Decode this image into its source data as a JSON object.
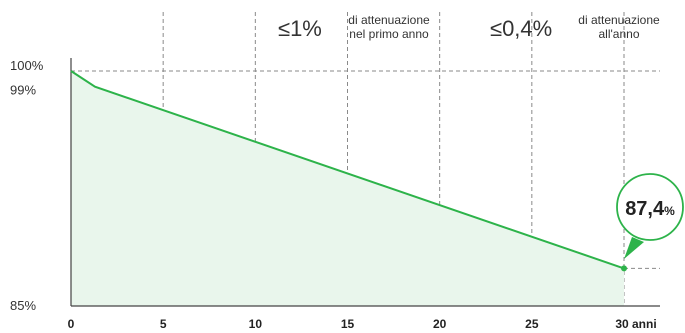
{
  "chart_data": {
    "type": "line",
    "x": [
      0,
      1.3,
      30
    ],
    "series": [
      {
        "values": [
          100,
          99,
          87.4
        ]
      }
    ],
    "xlim": [
      0,
      32
    ],
    "ylim": [
      85,
      100
    ],
    "x_ticks": [
      {
        "value": 0,
        "label": "0"
      },
      {
        "value": 5,
        "label": "5"
      },
      {
        "value": 10,
        "label": "10"
      },
      {
        "value": 15,
        "label": "15"
      },
      {
        "value": 20,
        "label": "20"
      },
      {
        "value": 25,
        "label": "25"
      },
      {
        "value": 30,
        "label": "30 anni"
      }
    ],
    "y_ticks": [
      {
        "value": 100,
        "label": "100%"
      },
      {
        "value": 99,
        "label": "99%"
      },
      {
        "value": 85,
        "label": "85%"
      }
    ],
    "grid": true,
    "colors": {
      "line": "#2db34a",
      "fill": "#e9f6ec",
      "grid": "#8a8a8a",
      "axis": "#444444"
    },
    "annotations": {
      "first_year": {
        "value": "≤1%",
        "line1": "di attenuazione",
        "line2": "nel primo anno"
      },
      "per_year": {
        "value": "≤0,4%",
        "line1": "di attenuazione",
        "line2": "all'anno"
      },
      "end_value": {
        "number": "87,4",
        "unit": "%"
      }
    }
  }
}
